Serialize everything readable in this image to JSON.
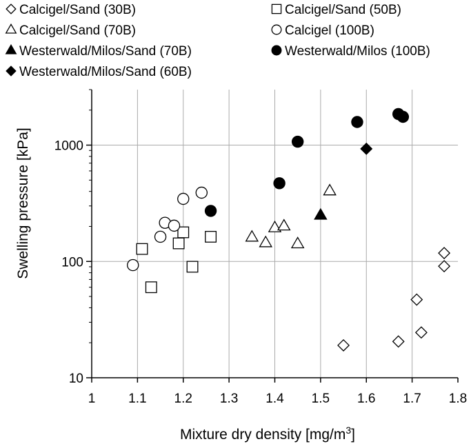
{
  "chart_data": {
    "type": "scatter",
    "title": "",
    "xlabel": "Mixture dry density [mg/m",
    "xlabel_sup": "3",
    "xlabel_end": "]",
    "ylabel": "Swelling pressure [kPa]",
    "xlim": [
      1.0,
      1.8
    ],
    "ylim": [
      10,
      3000
    ],
    "yscale": "log",
    "grid": true,
    "legend_position": "top",
    "xticks": [
      "1",
      "1.1",
      "1.2",
      "1.3",
      "1.4",
      "1.5",
      "1.6",
      "1.7",
      "1.8"
    ],
    "xtick_values": [
      1.0,
      1.1,
      1.2,
      1.3,
      1.4,
      1.5,
      1.6,
      1.7,
      1.8
    ],
    "yticks": [
      "10",
      "100",
      "1000"
    ],
    "ytick_values": [
      10,
      100,
      1000
    ],
    "series": [
      {
        "name": "Calcigel/Sand (30B)",
        "marker": "diamond-open",
        "points": [
          [
            1.55,
            19
          ],
          [
            1.67,
            20.5
          ],
          [
            1.71,
            47
          ],
          [
            1.72,
            24.5
          ],
          [
            1.77,
            118
          ],
          [
            1.77,
            91
          ]
        ]
      },
      {
        "name": "Calcigel/Sand (50B)",
        "marker": "square-open",
        "points": [
          [
            1.11,
            128
          ],
          [
            1.13,
            60
          ],
          [
            1.19,
            143
          ],
          [
            1.2,
            178
          ],
          [
            1.22,
            90
          ],
          [
            1.26,
            163
          ]
        ]
      },
      {
        "name": "Calcigel/Sand (70B)",
        "marker": "triangle-open",
        "points": [
          [
            1.35,
            162
          ],
          [
            1.38,
            145
          ],
          [
            1.4,
            195
          ],
          [
            1.42,
            202
          ],
          [
            1.45,
            142
          ],
          [
            1.52,
            405
          ]
        ]
      },
      {
        "name": "Calcigel (100B)",
        "marker": "circle-open",
        "points": [
          [
            1.09,
            93
          ],
          [
            1.15,
            163
          ],
          [
            1.16,
            215
          ],
          [
            1.18,
            203
          ],
          [
            1.2,
            345
          ],
          [
            1.24,
            390
          ]
        ]
      },
      {
        "name": "Westerwald/Milos/Sand (70B)",
        "marker": "triangle-filled",
        "points": [
          [
            1.5,
            250
          ]
        ]
      },
      {
        "name": "Westerwald/Milos (100B)",
        "marker": "circle-filled",
        "points": [
          [
            1.26,
            272
          ],
          [
            1.41,
            470
          ],
          [
            1.45,
            1070
          ],
          [
            1.58,
            1580
          ],
          [
            1.67,
            1850
          ],
          [
            1.68,
            1750
          ]
        ]
      },
      {
        "name": "Westerwald/Milos/Sand (60B)",
        "marker": "diamond-filled",
        "points": [
          [
            1.6,
            930
          ]
        ]
      }
    ]
  }
}
